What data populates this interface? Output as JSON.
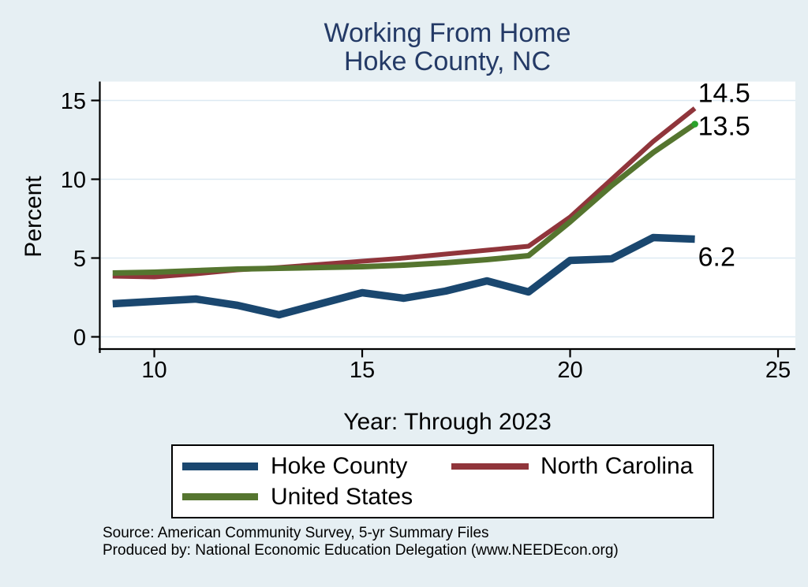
{
  "title": {
    "line1": "Working From Home",
    "line2": "Hoke County, NC"
  },
  "chart_data": {
    "type": "line",
    "x": [
      9,
      10,
      11,
      12,
      13,
      14,
      15,
      16,
      17,
      18,
      19,
      20,
      21,
      22,
      23
    ],
    "series": [
      {
        "name": "Hoke County",
        "color": "#1a476f",
        "line_width": 9.5,
        "values": [
          2.1,
          2.25,
          2.4,
          2.0,
          1.4,
          2.1,
          2.8,
          2.45,
          2.9,
          3.55,
          2.85,
          4.85,
          4.95,
          6.3,
          6.2
        ],
        "end_label": "6.2",
        "end_label_dy": 34,
        "end_marker_color": ""
      },
      {
        "name": "North Carolina",
        "color": "#90353b",
        "line_width": 6,
        "values": [
          3.85,
          3.8,
          4.0,
          4.25,
          4.4,
          4.6,
          4.8,
          5.0,
          5.25,
          5.5,
          5.75,
          7.6,
          10.0,
          12.4,
          14.5
        ],
        "end_label": "14.5",
        "end_label_dy": -8,
        "end_marker_color": ""
      },
      {
        "name": "United States",
        "color": "#55752f",
        "line_width": 7,
        "values": [
          4.05,
          4.1,
          4.2,
          4.3,
          4.35,
          4.4,
          4.45,
          4.55,
          4.7,
          4.9,
          5.15,
          7.3,
          9.6,
          11.7,
          13.5
        ],
        "end_label": "13.5",
        "end_label_dy": 14,
        "end_marker_color": "#2aa22a"
      }
    ],
    "title": "Working From Home Hoke County, NC",
    "xlabel": "Year: Through 2023",
    "ylabel": "Percent",
    "x_ticks": [
      10,
      15,
      20,
      25
    ],
    "y_ticks": [
      0,
      5,
      10,
      15
    ],
    "xlim": [
      8.69,
      25.42
    ],
    "ylim": [
      0,
      16.2
    ],
    "grid": "horizontal",
    "legend_position": "bottom"
  },
  "footer": {
    "line1": "Source: American Community Survey, 5-yr Summary Files",
    "line2": "Produced by: National Economic Education Delegation (www.NEEDEcon.org)"
  },
  "colors": {
    "background": "#e6eff3",
    "plot_background": "#ffffff",
    "gridline": "#dde9f2",
    "axis": "#000000",
    "title_text": "#243a66"
  }
}
